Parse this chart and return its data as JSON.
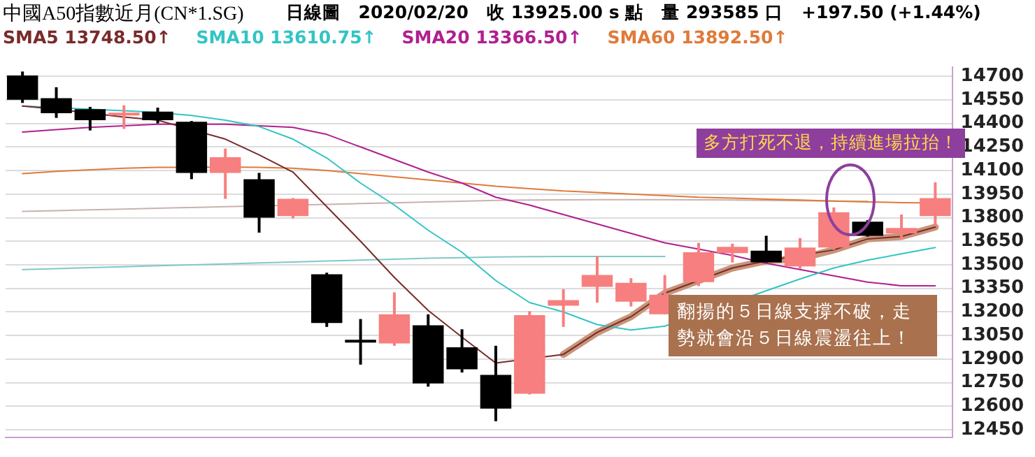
{
  "chart_data": {
    "type": "candlestick",
    "title": "中國A50指數近月(CN*1.SG)",
    "subtitle": "日線圖　2020/02/20　收 13925.00 s 點　量 293585 口　+197.50 (+1.44%)",
    "categories": [
      null,
      null,
      null,
      null,
      null,
      null,
      null,
      null,
      null,
      null,
      null,
      null,
      null,
      null,
      null,
      null,
      null,
      null,
      null,
      null,
      null,
      null,
      null,
      null,
      null,
      null,
      null,
      null
    ],
    "ohlc": [
      [
        14705,
        14730,
        14530,
        14550
      ],
      [
        14560,
        14630,
        14435,
        14465
      ],
      [
        14490,
        14505,
        14355,
        14420
      ],
      [
        14450,
        14515,
        14365,
        14465
      ],
      [
        14475,
        14500,
        14400,
        14420
      ],
      [
        14410,
        14415,
        14045,
        14085
      ],
      [
        14085,
        14240,
        13920,
        14185
      ],
      [
        14045,
        14085,
        13705,
        13800
      ],
      [
        13810,
        13925,
        13795,
        13920
      ],
      [
        13440,
        13450,
        13105,
        13130
      ],
      [
        13015,
        13155,
        12865,
        13005
      ],
      [
        13000,
        13325,
        12985,
        13185
      ],
      [
        13115,
        13185,
        12725,
        12745
      ],
      [
        12975,
        13090,
        12815,
        12835
      ],
      [
        12800,
        12985,
        12505,
        12585
      ],
      [
        12680,
        13205,
        12675,
        13180
      ],
      [
        13240,
        13345,
        13105,
        13275
      ],
      [
        13360,
        13555,
        13260,
        13435
      ],
      [
        13265,
        13415,
        13235,
        13385
      ],
      [
        13185,
        13435,
        13185,
        13310
      ],
      [
        13390,
        13640,
        13365,
        13580
      ],
      [
        13575,
        13635,
        13515,
        13615
      ],
      [
        13590,
        13685,
        13515,
        13515
      ],
      [
        13490,
        13670,
        13475,
        13610
      ],
      [
        13610,
        13865,
        13595,
        13835
      ],
      [
        13775,
        13785,
        13680,
        13685
      ],
      [
        13700,
        13820,
        13660,
        13735
      ],
      [
        13810,
        14025,
        13745,
        13925
      ]
    ],
    "colors": [
      "#000000",
      "#000000",
      "#000000",
      "#f77f7f",
      "#000000",
      "#000000",
      "#f77f7f",
      "#000000",
      "#f77f7f",
      "#000000",
      "#000000",
      "#f77f7f",
      "#000000",
      "#000000",
      "#000000",
      "#f77f7f",
      "#f77f7f",
      "#f77f7f",
      "#f77f7f",
      "#f77f7f",
      "#f77f7f",
      "#f77f7f",
      "#000000",
      "#f77f7f",
      "#f77f7f",
      "#000000",
      "#f77f7f",
      "#f77f7f"
    ],
    "series": [
      {
        "type": "line",
        "name": "SMA5 13748.50↑",
        "color": "#7a2a2a",
        "values": [
          14510,
          14490,
          14465,
          14440,
          14420,
          null,
          14300,
          14200,
          14090,
          13870,
          13650,
          13420,
          13210,
          13040,
          12875,
          null,
          12930,
          13070,
          13170,
          13320,
          null,
          13480,
          13525,
          null,
          13595,
          13665,
          13680,
          13740
        ]
      },
      {
        "type": "line",
        "name": "SMA10 13610.75↑",
        "color": "#33c4c4",
        "values": [
          14510,
          null,
          14490,
          14480,
          14470,
          14450,
          14420,
          14380,
          14300,
          14180,
          14020,
          13880,
          13720,
          13580,
          13400,
          13260,
          13200,
          13120,
          13085,
          13110,
          null,
          null,
          null,
          13410,
          13480,
          13530,
          13570,
          13610
        ]
      },
      {
        "type": "line",
        "name": "SMA20 13366.50↑",
        "color": "#b0208f",
        "values": [
          14345,
          14360,
          14375,
          14385,
          14395,
          null,
          14395,
          14385,
          14375,
          14330,
          14250,
          14170,
          14090,
          14020,
          13930,
          13880,
          13820,
          13760,
          13700,
          13640,
          13600,
          13560,
          13510,
          13470,
          13430,
          13390,
          13367,
          13367
        ]
      },
      {
        "type": "line",
        "name": "SMA60 13892.50↑",
        "color": "#e07a3a",
        "values": [
          14080,
          14095,
          14105,
          14115,
          14120,
          null,
          14122,
          14120,
          14115,
          14100,
          14080,
          14060,
          14040,
          14020,
          14000,
          13985,
          13970,
          13960,
          13950,
          13940,
          13930,
          13925,
          13918,
          13912,
          13906,
          13900,
          13896,
          13893
        ]
      },
      {
        "type": "line",
        "color": "#c9b2ae",
        "values": [
          13840,
          13845,
          13850,
          13855,
          13860,
          13865,
          13870,
          null,
          null,
          13885,
          13890,
          13895,
          13900,
          13905,
          13910,
          13912,
          13914,
          13915,
          13915,
          13915,
          13914,
          13912,
          13910,
          13908,
          13906,
          13905,
          null,
          null
        ]
      },
      {
        "type": "line",
        "color": "#7fc9c9",
        "values": [
          13470,
          13476,
          13482,
          13488,
          13494,
          13500,
          13506,
          13512,
          13518,
          13524,
          13530,
          13536,
          13542,
          13546,
          13550,
          13552,
          13553,
          13553,
          13553,
          13553,
          null,
          null,
          null,
          null,
          null,
          null,
          null,
          null
        ]
      },
      {
        "type": "line",
        "color": "#c8957a",
        "values": [
          null,
          null,
          null,
          null,
          null,
          null,
          null,
          null,
          null,
          null,
          null,
          null,
          null,
          null,
          null,
          null,
          12930,
          13070,
          13170,
          13320,
          null,
          13480,
          13525,
          13540,
          13595,
          13665,
          13680,
          13740
        ]
      }
    ],
    "ylim": [
      12400,
      14760
    ],
    "yticks": [
      12450,
      12600,
      12750,
      12900,
      13050,
      13200,
      13350,
      13500,
      13650,
      13800,
      13950,
      14100,
      14250,
      14400,
      14550,
      14700
    ],
    "grid": "y",
    "legend": "top left",
    "tick_labels": "y",
    "annotations": [
      "多方打死不退，持續進場拉抬！",
      "翻揚的５日線支撐不破，走勢就會沿５日線震盪往上！"
    ]
  }
}
